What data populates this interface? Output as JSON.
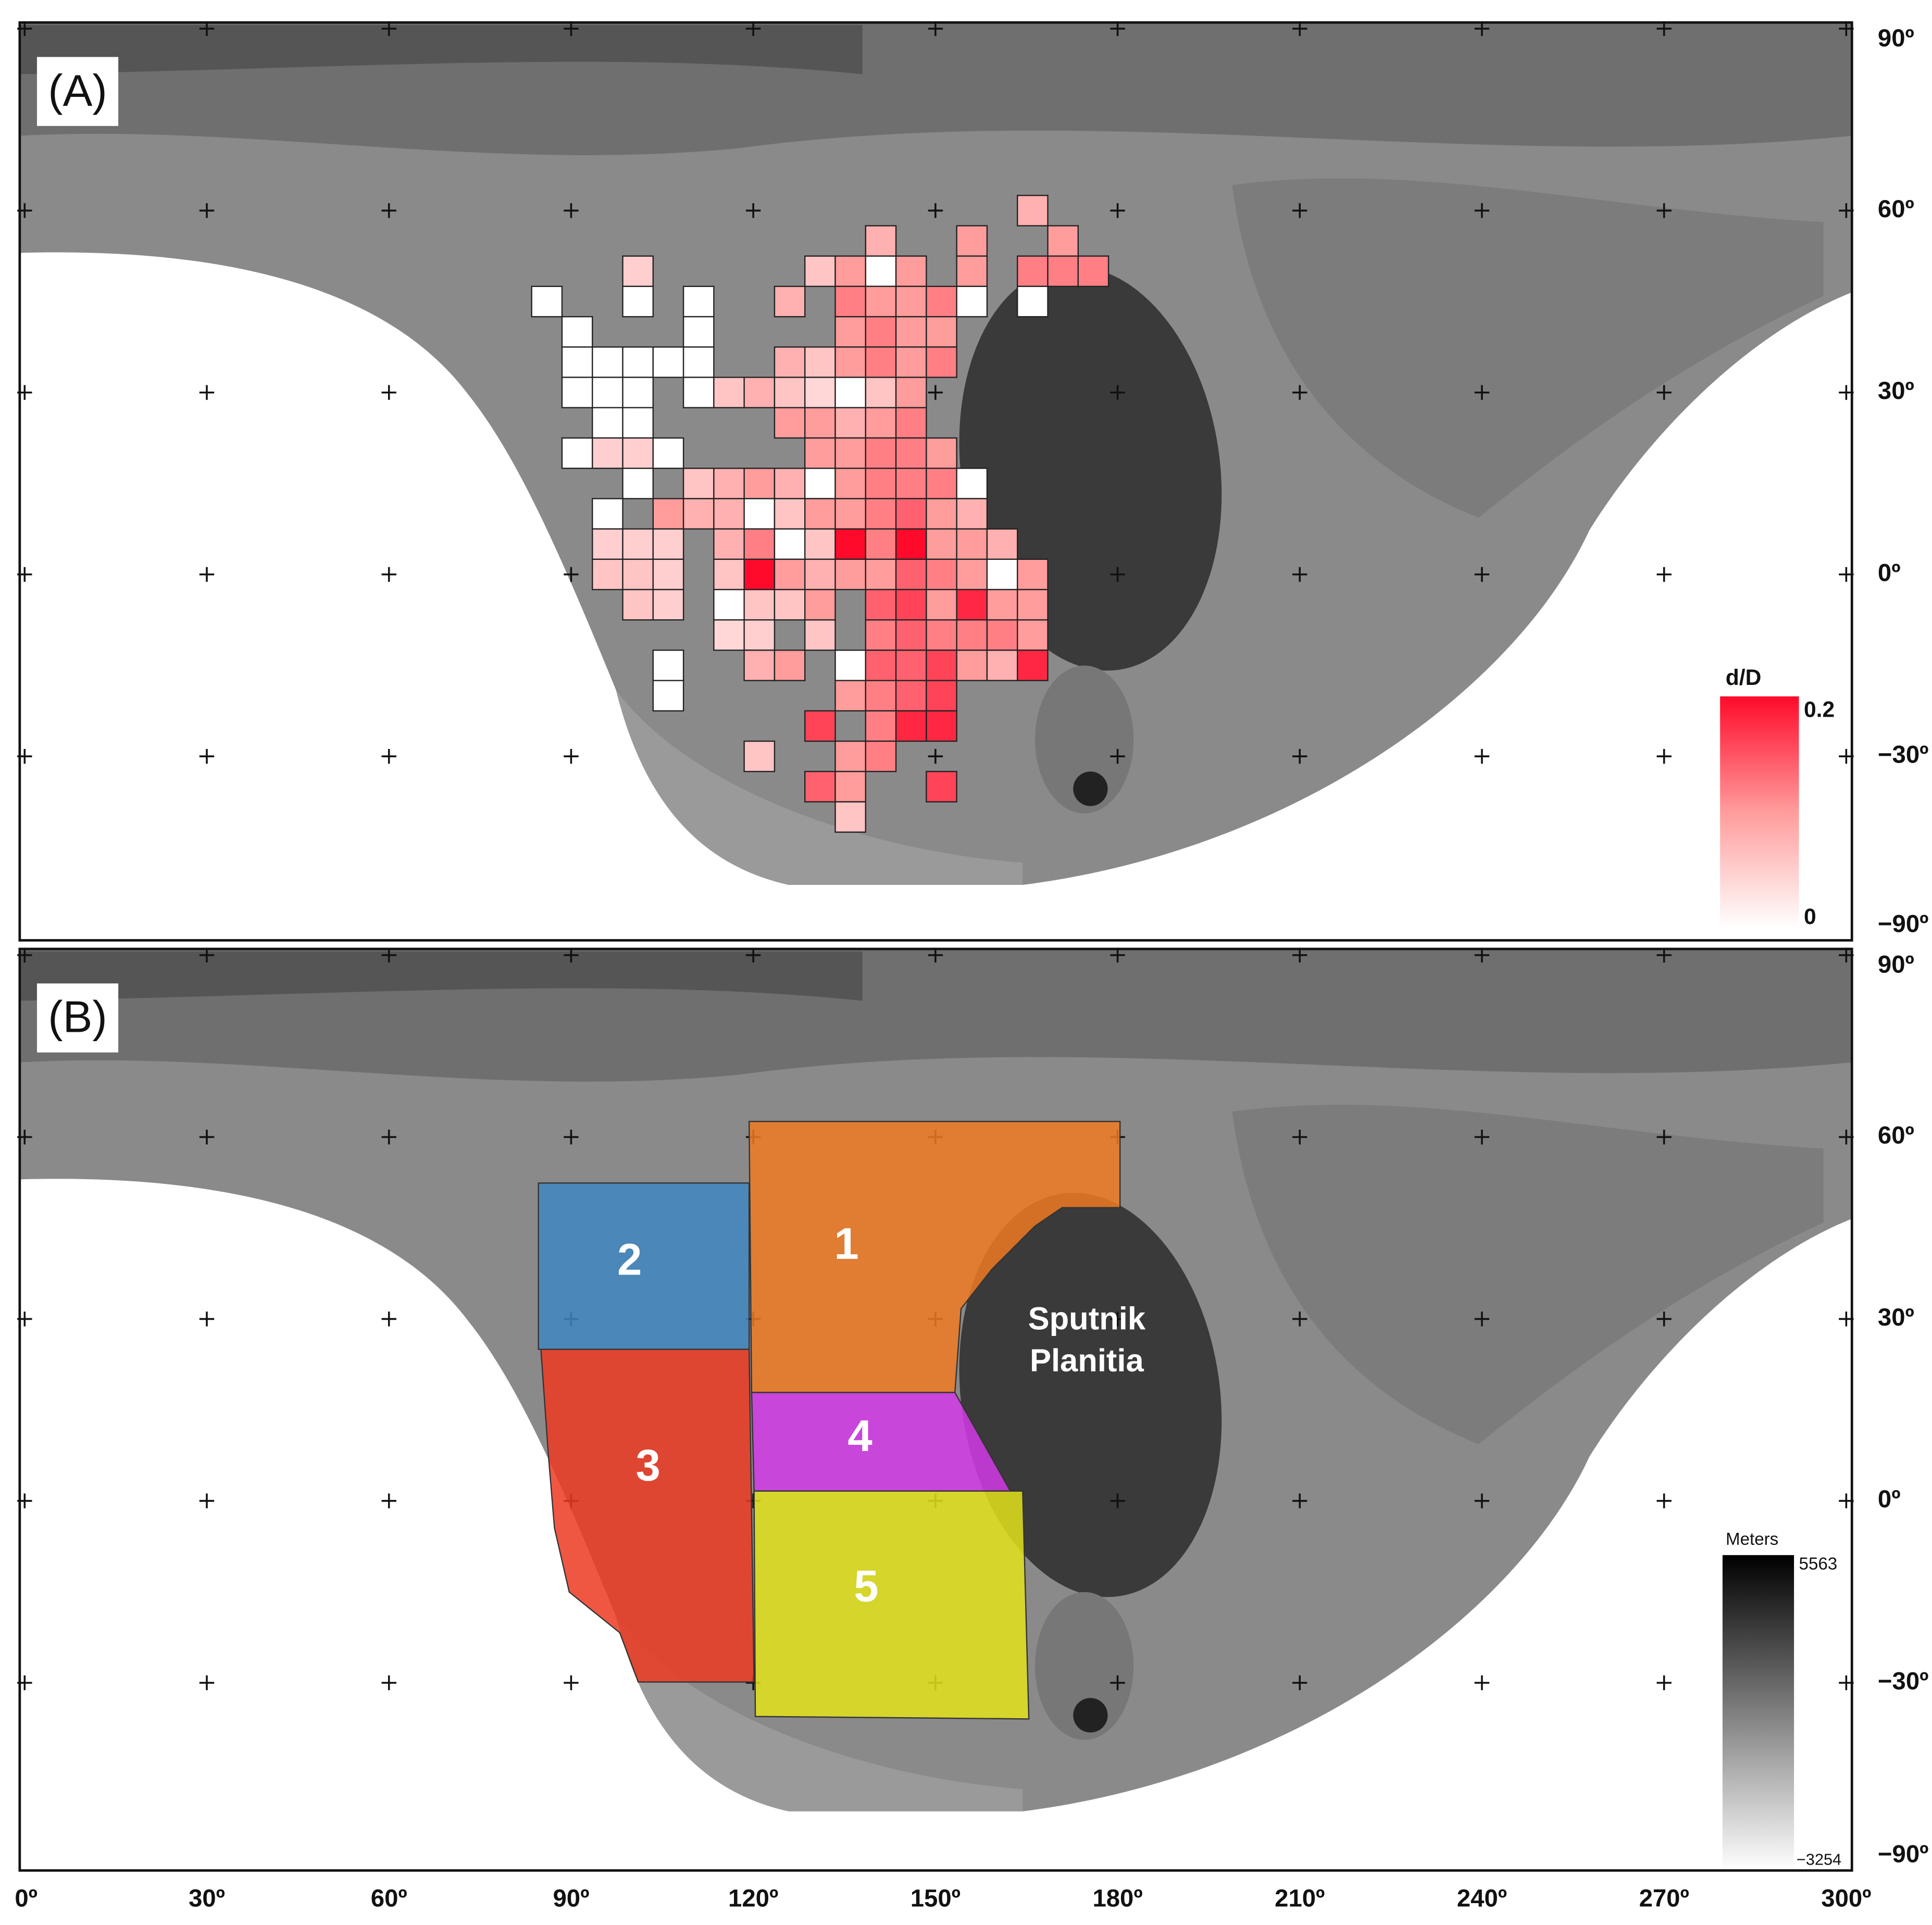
{
  "x_axis": {
    "ticks": [
      {
        "value": 0,
        "label": "0º"
      },
      {
        "value": 30,
        "label": "30º"
      },
      {
        "value": 60,
        "label": "60º"
      },
      {
        "value": 90,
        "label": "90º"
      },
      {
        "value": 120,
        "label": "120º"
      },
      {
        "value": 150,
        "label": "150º"
      },
      {
        "value": 180,
        "label": "180º"
      },
      {
        "value": 210,
        "label": "210º"
      },
      {
        "value": 240,
        "label": "240º"
      },
      {
        "value": 270,
        "label": "270º"
      },
      {
        "value": 300,
        "label": "300º"
      }
    ]
  },
  "y_axis": {
    "ticks": [
      {
        "value": 90,
        "label": "90º"
      },
      {
        "value": 60,
        "label": "60º"
      },
      {
        "value": 30,
        "label": "30º"
      },
      {
        "value": 0,
        "label": "0º"
      },
      {
        "value": -30,
        "label": "−30º"
      },
      {
        "value": -90,
        "label": "−90º"
      }
    ]
  },
  "panels": [
    {
      "label": "(A)",
      "colorbar": {
        "title": "d/D",
        "min": 0,
        "max": 0.2,
        "colors": [
          "#ffffff",
          "#ff9c9c",
          "#ff0a2a"
        ]
      },
      "grid": {
        "lon": [
          166,
          141,
          156,
          171,
          101,
          131,
          136,
          141,
          146,
          156,
          166,
          171,
          176,
          86,
          101,
          111,
          126,
          136,
          141,
          146,
          151,
          156,
          166,
          91,
          111,
          136,
          141,
          146,
          151,
          91,
          96,
          101,
          106,
          111,
          126,
          131,
          136,
          141,
          146,
          151,
          91,
          96,
          101,
          111,
          116,
          121,
          126,
          131,
          136,
          141,
          146,
          96,
          101,
          126,
          131,
          136,
          141,
          146,
          91,
          96,
          101,
          106,
          131,
          136,
          141,
          146,
          151,
          101,
          111,
          116,
          121,
          126,
          131,
          136,
          141,
          146,
          151,
          156,
          96,
          106,
          111,
          116,
          121,
          126,
          131,
          136,
          141,
          146,
          151,
          156,
          96,
          101,
          106,
          116,
          121,
          126,
          131,
          136,
          141,
          146,
          151,
          156,
          161,
          96,
          101,
          106,
          116,
          121,
          126,
          131,
          136,
          141,
          146,
          151,
          156,
          161,
          166,
          101,
          106,
          116,
          121,
          126,
          131,
          141,
          146,
          151,
          156,
          161,
          166,
          116,
          121,
          131,
          141,
          146,
          151,
          156,
          161,
          166,
          106,
          121,
          126,
          136,
          141,
          146,
          151,
          156,
          161,
          166,
          106,
          136,
          141,
          146,
          151,
          131,
          141,
          146,
          151,
          121,
          136,
          141,
          131,
          136,
          151,
          136
        ],
        "lat": [
          60,
          55,
          55,
          55,
          50,
          50,
          50,
          50,
          50,
          50,
          50,
          50,
          50,
          45,
          45,
          45,
          45,
          45,
          45,
          45,
          45,
          45,
          45,
          40,
          40,
          40,
          40,
          40,
          40,
          35,
          35,
          35,
          35,
          35,
          35,
          35,
          35,
          35,
          35,
          35,
          30,
          30,
          30,
          30,
          30,
          30,
          30,
          30,
          30,
          30,
          30,
          25,
          25,
          25,
          25,
          25,
          25,
          25,
          20,
          20,
          20,
          20,
          20,
          20,
          20,
          20,
          20,
          15,
          15,
          15,
          15,
          15,
          15,
          15,
          15,
          15,
          15,
          15,
          10,
          10,
          10,
          10,
          10,
          10,
          10,
          10,
          10,
          10,
          10,
          10,
          5,
          5,
          5,
          5,
          5,
          5,
          5,
          5,
          5,
          5,
          5,
          5,
          5,
          0,
          0,
          0,
          0,
          0,
          0,
          0,
          0,
          0,
          0,
          0,
          0,
          0,
          0,
          -5,
          -5,
          -5,
          -5,
          -5,
          -5,
          -5,
          -5,
          -5,
          -5,
          -5,
          -5,
          -10,
          -10,
          -10,
          -10,
          -10,
          -10,
          -10,
          -10,
          -10,
          -15,
          -15,
          -15,
          -15,
          -15,
          -15,
          -15,
          -15,
          -15,
          -15,
          -20,
          -20,
          -20,
          -20,
          -20,
          -25,
          -25,
          -25,
          -25,
          -30,
          -30,
          -30,
          -35,
          -35,
          -35,
          -40
        ],
        "values": [
          0.08,
          0.08,
          0.1,
          0.1,
          0.05,
          0.06,
          0.1,
          0,
          0.1,
          0.1,
          0.12,
          0.12,
          0.12,
          0,
          0,
          0,
          0.08,
          0.12,
          0.1,
          0.1,
          0.12,
          0,
          0,
          0,
          0,
          0.1,
          0.12,
          0.1,
          0.1,
          0,
          0,
          0,
          0,
          0,
          0.08,
          0.06,
          0.1,
          0.12,
          0.1,
          0.12,
          0,
          0,
          0,
          0,
          0.06,
          0.08,
          0.06,
          0.04,
          0,
          0.06,
          0.1,
          0,
          0,
          0.1,
          0.1,
          0.08,
          0.1,
          0.12,
          0,
          0.05,
          0.05,
          0,
          0.1,
          0.1,
          0.12,
          0.12,
          0.1,
          0,
          0.06,
          0.08,
          0.1,
          0.08,
          0,
          0.1,
          0.12,
          0.12,
          0.12,
          0,
          0,
          0.1,
          0.08,
          0.08,
          0,
          0.06,
          0.1,
          0.1,
          0.12,
          0.14,
          0.1,
          0.08,
          0.05,
          0.05,
          0.05,
          0.08,
          0.12,
          0,
          0.06,
          0.2,
          0.12,
          0.2,
          0.1,
          0.1,
          0.08,
          0.06,
          0.06,
          0.05,
          0.06,
          0.2,
          0.1,
          0.08,
          0.1,
          0.1,
          0.14,
          0.12,
          0.1,
          0,
          0.1,
          0.06,
          0.05,
          0,
          0.06,
          0.06,
          0.1,
          0.14,
          0.16,
          0.1,
          0.18,
          0.1,
          0.1,
          0.04,
          0.05,
          0.06,
          0.12,
          0.14,
          0.12,
          0.12,
          0.12,
          0.1,
          0,
          0.08,
          0.1,
          0,
          0.14,
          0.14,
          0.16,
          0.1,
          0.08,
          0.18,
          0,
          0.1,
          0.12,
          0.14,
          0.16,
          0.16,
          0.12,
          0.18,
          0.18,
          0.06,
          0.1,
          0.12,
          0.14,
          0.1,
          0.16,
          0.06
        ]
      }
    },
    {
      "label": "(B)",
      "regions": [
        "1",
        "2",
        "3",
        "4",
        "5"
      ],
      "feature_label": [
        "Sputnik",
        "Planitia"
      ],
      "colorbar": {
        "title": "Meters",
        "min": {
          "value": -3254,
          "label": "−3254"
        },
        "max": 5563,
        "colors": [
          "#ffffff",
          "#000000"
        ]
      }
    }
  ]
}
